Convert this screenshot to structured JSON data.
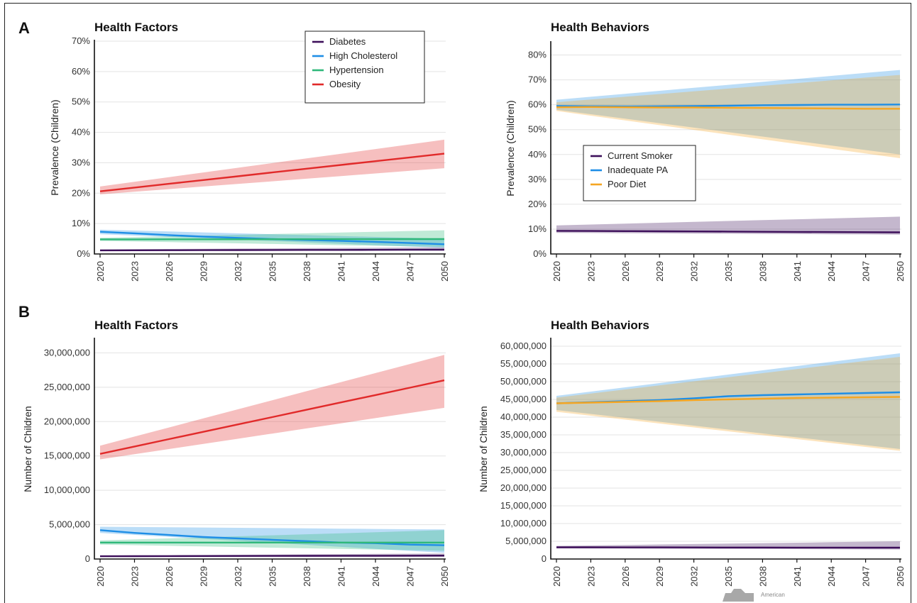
{
  "panel_labels": {
    "a": "A",
    "b": "B"
  },
  "logo": {
    "text": "American",
    "color": "#9a9a9a"
  },
  "chart_data": [
    {
      "id": "a-factors",
      "type": "line",
      "title": "Health Factors",
      "xlabel": "",
      "ylabel": "Prevalence (Children)",
      "x": [
        2020,
        2023,
        2026,
        2029,
        2032,
        2035,
        2038,
        2041,
        2044,
        2047,
        2050
      ],
      "x_ticks": [
        "2020",
        "2023",
        "2026",
        "2029",
        "2032",
        "2035",
        "2038",
        "2041",
        "2044",
        "2047",
        "2050"
      ],
      "ylim": [
        0,
        70
      ],
      "y_ticks": [
        0,
        10,
        20,
        30,
        40,
        50,
        60,
        70
      ],
      "y_tick_labels": [
        "0%",
        "10%",
        "20%",
        "30%",
        "40%",
        "50%",
        "60%",
        "70%"
      ],
      "legend_position": "top-right",
      "series": [
        {
          "name": "Diabetes",
          "color": "#3d0f5a",
          "mid": [
            1.2,
            1.4
          ],
          "lo": [
            1.0,
            1.2
          ],
          "hi": [
            1.5,
            2.2
          ]
        },
        {
          "name": "High Cholesterol",
          "color": "#1e8ee6",
          "mid": [
            7.3,
            6.8,
            6.2,
            5.7,
            5.3,
            4.9,
            4.6,
            4.3,
            4.0,
            3.6,
            3.2
          ],
          "lo": [
            6.5,
            2.0
          ],
          "hi": [
            8.0,
            5.0
          ]
        },
        {
          "name": "Hypertension",
          "color": "#2fb87a",
          "mid": [
            4.8,
            4.9
          ],
          "lo": [
            4.3,
            2.3
          ],
          "hi": [
            5.3,
            7.8
          ]
        },
        {
          "name": "Obesity",
          "color": "#e12a2a",
          "mid": [
            20.6,
            33.0
          ],
          "lo": [
            19.6,
            28.2
          ],
          "hi": [
            22.2,
            37.6
          ]
        }
      ]
    },
    {
      "id": "a-behaviors",
      "type": "line",
      "title": "Health Behaviors",
      "xlabel": "",
      "ylabel": "Prevalence (Children)",
      "x": [
        2020,
        2023,
        2026,
        2029,
        2032,
        2035,
        2038,
        2041,
        2044,
        2047,
        2050
      ],
      "x_ticks": [
        "2020",
        "2023",
        "2026",
        "2029",
        "2032",
        "2035",
        "2038",
        "2041",
        "2044",
        "2047",
        "2050"
      ],
      "ylim": [
        0,
        85
      ],
      "y_ticks": [
        0,
        10,
        20,
        30,
        40,
        50,
        60,
        70,
        80
      ],
      "y_tick_labels": [
        "0%",
        "10%",
        "20%",
        "30%",
        "40%",
        "50%",
        "60%",
        "70%",
        "80%"
      ],
      "legend_position": "middle-left",
      "series": [
        {
          "name": "Current Smoker",
          "color": "#3d0f5a",
          "mid": [
            9.3,
            8.7
          ],
          "lo": [
            8.5,
            7.8
          ],
          "hi": [
            11.5,
            15.0
          ]
        },
        {
          "name": "Inadequate PA",
          "color": "#1e8ee6",
          "mid": [
            59.5,
            59.4,
            59.3,
            59.4,
            59.5,
            59.6,
            59.8,
            59.9,
            60.0,
            60.0,
            60.1
          ],
          "lo": [
            58.0,
            40.0
          ],
          "hi": [
            62.0,
            74.0
          ]
        },
        {
          "name": "Poor Diet",
          "color": "#f5a623",
          "mid": [
            59.0,
            59.1,
            59.0,
            58.9,
            58.9,
            58.8,
            58.7,
            58.6,
            58.5,
            58.4,
            58.4
          ],
          "lo": [
            57.5,
            38.5
          ],
          "hi": [
            61.0,
            72.0
          ]
        }
      ]
    },
    {
      "id": "b-factors",
      "type": "line",
      "title": "Health Factors",
      "xlabel": "",
      "ylabel": "Number of Children",
      "x": [
        2020,
        2023,
        2026,
        2029,
        2032,
        2035,
        2038,
        2041,
        2044,
        2047,
        2050
      ],
      "x_ticks": [
        "2020",
        "2023",
        "2026",
        "2029",
        "2032",
        "2035",
        "2038",
        "2041",
        "2044",
        "2047",
        "2050"
      ],
      "ylim": [
        0,
        32000000
      ],
      "y_ticks": [
        0,
        5000000,
        10000000,
        15000000,
        20000000,
        25000000,
        30000000
      ],
      "y_tick_labels": [
        "0",
        "5,000,000",
        "10,000,000",
        "15,000,000",
        "20,000,000",
        "25,000,000",
        "30,000,000"
      ],
      "series": [
        {
          "name": "Diabetes",
          "color": "#3d0f5a",
          "mid": [
            400000,
            500000
          ],
          "lo": [
            300000,
            300000
          ],
          "hi": [
            500000,
            800000
          ]
        },
        {
          "name": "High Cholesterol",
          "color": "#1e8ee6",
          "mid": [
            4200000,
            3800000,
            3500000,
            3200000,
            3000000,
            2800000,
            2600000,
            2400000,
            2300000,
            2100000,
            2000000
          ],
          "lo": [
            3800000,
            900000
          ],
          "hi": [
            4700000,
            4300000
          ]
        },
        {
          "name": "Hypertension",
          "color": "#2fb87a",
          "mid": [
            2400000,
            2400000
          ],
          "lo": [
            2100000,
            1200000
          ],
          "hi": [
            2700000,
            4200000
          ]
        },
        {
          "name": "Obesity",
          "color": "#e12a2a",
          "mid": [
            15300000,
            26000000
          ],
          "lo": [
            14500000,
            22000000
          ],
          "hi": [
            16500000,
            29700000
          ]
        }
      ]
    },
    {
      "id": "b-behaviors",
      "type": "line",
      "title": "Health Behaviors",
      "xlabel": "",
      "ylabel": "Number of Children",
      "x": [
        2020,
        2023,
        2026,
        2029,
        2032,
        2035,
        2038,
        2041,
        2044,
        2047,
        2050
      ],
      "x_ticks": [
        "2020",
        "2023",
        "2026",
        "2029",
        "2032",
        "2035",
        "2038",
        "2041",
        "2044",
        "2047",
        "2050"
      ],
      "ylim": [
        0,
        62000000
      ],
      "y_ticks": [
        0,
        5000000,
        10000000,
        15000000,
        20000000,
        25000000,
        30000000,
        35000000,
        40000000,
        45000000,
        50000000,
        55000000,
        60000000
      ],
      "y_tick_labels": [
        "0",
        "5,000,000",
        "10,000,000",
        "15,000,000",
        "20,000,000",
        "25,000,000",
        "30,000,000",
        "35,000,000",
        "40,000,000",
        "45,000,000",
        "50,000,000",
        "55,000,000",
        "60,000,000"
      ],
      "series": [
        {
          "name": "Current Smoker",
          "color": "#3d0f5a",
          "mid": [
            3300000,
            3200000
          ],
          "lo": [
            3000000,
            2700000
          ],
          "hi": [
            3700000,
            5000000
          ]
        },
        {
          "name": "Inadequate PA",
          "color": "#1e8ee6",
          "mid": [
            43900000,
            44200000,
            44500000,
            44800000,
            45300000,
            45900000,
            46200000,
            46400000,
            46600000,
            46800000,
            47000000
          ],
          "lo": [
            42000000,
            31000000
          ],
          "hi": [
            46000000,
            58000000
          ]
        },
        {
          "name": "Poor Diet",
          "color": "#f5a623",
          "mid": [
            43900000,
            44100000,
            44300000,
            44500000,
            44800000,
            45000000,
            45200000,
            45400000,
            45500000,
            45600000,
            45700000
          ],
          "lo": [
            41500000,
            30500000
          ],
          "hi": [
            45500000,
            57000000
          ]
        }
      ]
    }
  ]
}
